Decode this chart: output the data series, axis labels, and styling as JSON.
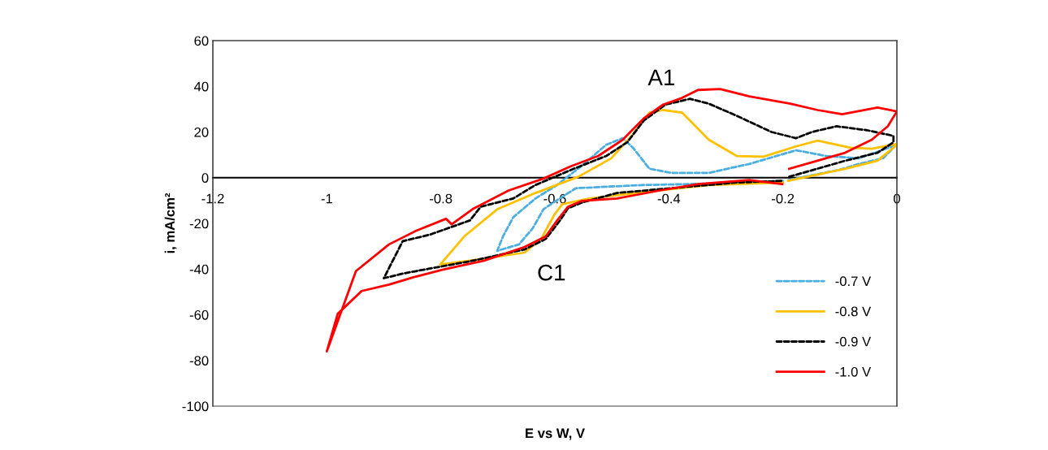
{
  "chart_data": {
    "type": "line",
    "xlabel": "E vs W, V",
    "ylabel": "i, mA/cm²",
    "xlim": [
      -1.2,
      0
    ],
    "ylim": [
      -100,
      60
    ],
    "xticks": [
      -1.2,
      -1,
      -0.8,
      -0.6,
      -0.4,
      -0.2,
      0
    ],
    "yticks": [
      -100,
      -80,
      -60,
      -40,
      -20,
      0,
      20,
      40,
      60
    ],
    "grid": false,
    "legend": "bottom right",
    "marker": "none",
    "annotations": [
      "A1",
      "C1"
    ],
    "series": [
      {
        "name": "-0.7 V",
        "color": "#4aaee0",
        "line_style": "dashed",
        "x": [
          -0.19,
          -0.1,
          -0.067,
          -0.024,
          -0.006,
          -0.006,
          -0.067,
          -0.124,
          -0.177,
          -0.259,
          -0.33,
          -0.377,
          -0.396,
          -0.434,
          -0.463,
          -0.481,
          -0.51,
          -0.549,
          -0.596,
          -0.634,
          -0.673,
          -0.691,
          -0.701,
          -0.663,
          -0.639,
          -0.62,
          -0.596,
          -0.563,
          -0.444,
          -0.359,
          -0.2
        ],
        "values": [
          -1,
          3.5,
          6,
          8.5,
          13.1,
          13.8,
          8.5,
          9.5,
          12,
          6,
          2.1,
          2.1,
          2.1,
          3.9,
          13.1,
          17.3,
          14.4,
          6,
          -3.2,
          -9.1,
          -17.3,
          -25.7,
          -32,
          -29.2,
          -22.2,
          -13.8,
          -9.8,
          -4.6,
          -3.2,
          -2.8,
          -1.4
        ]
      },
      {
        "name": "-0.8 V",
        "color": "#ffc000",
        "line_style": "solid",
        "x": [
          -0.191,
          -0.091,
          -0.034,
          0,
          0,
          -0.044,
          -0.081,
          -0.139,
          -0.177,
          -0.234,
          -0.281,
          -0.33,
          -0.377,
          -0.41,
          -0.434,
          -0.463,
          -0.501,
          -0.559,
          -0.634,
          -0.701,
          -0.759,
          -0.801,
          -0.749,
          -0.653,
          -0.624,
          -0.601,
          -0.587,
          -0.539,
          -0.42,
          -0.33,
          -0.2
        ],
        "values": [
          -1.4,
          3.9,
          7.4,
          14.4,
          14.8,
          12.7,
          13.1,
          16.2,
          13.7,
          9.2,
          9.5,
          16.6,
          28.5,
          29.6,
          28.5,
          19,
          8.5,
          0.4,
          -6.7,
          -13.8,
          -25.7,
          -38,
          -36.3,
          -32.8,
          -26.8,
          -16.2,
          -11.6,
          -9.1,
          -5.6,
          -3.2,
          -2.1
        ]
      },
      {
        "name": "-0.9 V",
        "color": "#000000",
        "line_style": "dashed",
        "x": [
          -0.189,
          -0.091,
          -0.034,
          -0.006,
          -0.006,
          -0.053,
          -0.106,
          -0.149,
          -0.177,
          -0.22,
          -0.281,
          -0.33,
          -0.363,
          -0.406,
          -0.444,
          -0.473,
          -0.51,
          -0.567,
          -0.634,
          -0.673,
          -0.73,
          -0.749,
          -0.82,
          -0.867,
          -0.9,
          -0.867,
          -0.82,
          -0.749,
          -0.653,
          -0.616,
          -0.591,
          -0.577,
          -0.553,
          -0.491,
          -0.396,
          -0.281,
          -0.2
        ],
        "values": [
          0.4,
          7.4,
          10.9,
          15.5,
          18.3,
          20.8,
          22.5,
          20,
          17.3,
          20,
          27.1,
          32.4,
          34.5,
          32,
          25,
          15.5,
          9.5,
          3.9,
          -3.2,
          -9.1,
          -12.7,
          -18.7,
          -25,
          -27.8,
          -44,
          -42,
          -39.8,
          -36.6,
          -31.4,
          -26.8,
          -18.7,
          -13.4,
          -10.9,
          -6.7,
          -4.6,
          -2.1,
          -1.4
        ]
      },
      {
        "name": "-1.0 V",
        "color": "#ff0000",
        "line_style": "solid",
        "x": [
          -0.189,
          -0.091,
          -0.044,
          -0.016,
          0,
          -0.034,
          -0.096,
          -0.139,
          -0.187,
          -0.259,
          -0.31,
          -0.349,
          -0.377,
          -0.41,
          -0.444,
          -0.481,
          -0.524,
          -0.573,
          -0.62,
          -0.681,
          -0.744,
          -0.781,
          -0.791,
          -0.844,
          -0.891,
          -0.949,
          -1.0,
          -0.981,
          -0.939,
          -0.891,
          -0.844,
          -0.796,
          -0.724,
          -0.653,
          -0.616,
          -0.596,
          -0.577,
          -0.553,
          -0.491,
          -0.416,
          -0.349,
          -0.259,
          -0.201
        ],
        "values": [
          3.9,
          10.9,
          16.6,
          22.5,
          29,
          30.7,
          27.8,
          29.6,
          32.4,
          35.6,
          38.8,
          38.4,
          34.9,
          32,
          26,
          16.6,
          9.5,
          4.9,
          -0.4,
          -5.6,
          -13.7,
          -20.4,
          -18,
          -23.3,
          -29.2,
          -40.9,
          -76,
          -59.6,
          -49.6,
          -46.8,
          -43.3,
          -40.2,
          -36.3,
          -30.3,
          -25.7,
          -18.7,
          -12.7,
          -10.2,
          -9.1,
          -5.6,
          -2.8,
          -1,
          -2.8
        ]
      }
    ]
  }
}
